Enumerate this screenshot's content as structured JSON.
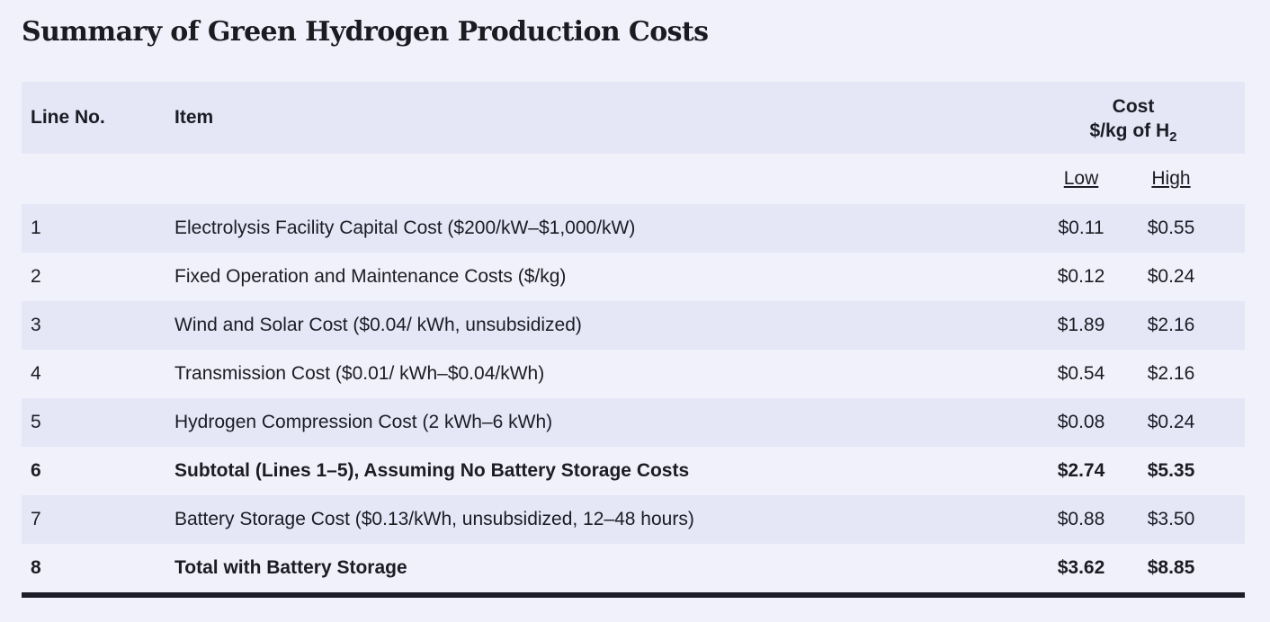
{
  "title": "Summary of Green Hydrogen Production Costs",
  "header": {
    "line_no": "Line No.",
    "item": "Item",
    "cost_line1": "Cost",
    "cost_line2_prefix": "$/kg of H",
    "cost_line2_subscript": "2",
    "low": "Low",
    "high": "High"
  },
  "rows": [
    {
      "line": "1",
      "item": "Electrolysis Facility Capital Cost ($200/kW–$1,000/kW)",
      "low": "$0.11",
      "high": "$0.55",
      "bold": false
    },
    {
      "line": "2",
      "item": "Fixed Operation and Maintenance Costs ($/kg)",
      "low": "$0.12",
      "high": "$0.24",
      "bold": false
    },
    {
      "line": "3",
      "item": "Wind and Solar Cost ($0.04/ kWh, unsubsidized)",
      "low": "$1.89",
      "high": "$2.16",
      "bold": false
    },
    {
      "line": "4",
      "item": "Transmission Cost ($0.01/ kWh–$0.04/kWh)",
      "low": "$0.54",
      "high": "$2.16",
      "bold": false
    },
    {
      "line": "5",
      "item": "Hydrogen Compression Cost (2 kWh–6 kWh)",
      "low": "$0.08",
      "high": "$0.24",
      "bold": false
    },
    {
      "line": "6",
      "item": "Subtotal (Lines 1–5), Assuming No Battery Storage Costs",
      "low": "$2.74",
      "high": "$5.35",
      "bold": true
    },
    {
      "line": "7",
      "item": "Battery Storage Cost ($0.13/kWh, unsubsidized, 12–48 hours)",
      "low": "$0.88",
      "high": "$3.50",
      "bold": false
    },
    {
      "line": "8",
      "item": "Total with Battery Storage",
      "low": "$3.62",
      "high": "$8.85",
      "bold": true
    }
  ]
}
